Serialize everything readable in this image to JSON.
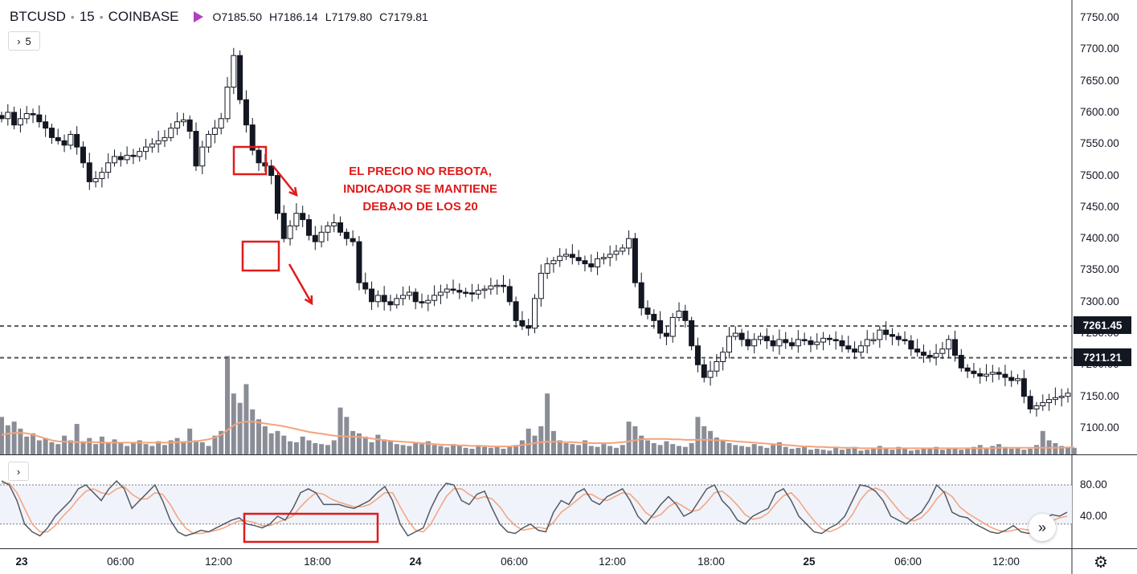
{
  "header": {
    "symbol": "BTCUSD",
    "interval": "15",
    "exchange": "COINBASE",
    "open": "O7185.50",
    "high": "H7186.14",
    "low": "L7179.80",
    "close": "C7179.81",
    "flag_color": "#b040c0"
  },
  "indicators_toggle": {
    "icon": "chevron-right-icon",
    "count": "5"
  },
  "pane_toggle": {
    "icon": "chevron-right-icon"
  },
  "annotation": {
    "line1": "EL PRECIO NO REBOTA,",
    "line2": "INDICADOR SE MANTIENE",
    "line3": "DEBAJO DE LOS 20",
    "color": "#e01b1b"
  },
  "price_tags": {
    "upper": "7261.45",
    "lower": "7211.21"
  },
  "chart_data": {
    "type": "candlestick",
    "symbol": "BTCUSD",
    "timeframe": "15",
    "y_ticks": [
      "7750.00",
      "7700.00",
      "7650.00",
      "7600.00",
      "7550.00",
      "7500.00",
      "7450.00",
      "7400.00",
      "7350.00",
      "7300.00",
      "7250.00",
      "7200.00",
      "7150.00",
      "7100.00"
    ],
    "ylim": [
      7060,
      7778
    ],
    "x_ticks": [
      "23",
      "06:00",
      "12:00",
      "18:00",
      "24",
      "06:00",
      "12:00",
      "18:00",
      "25",
      "06:00",
      "12:00"
    ],
    "horizontal_levels": [
      7261.45,
      7211.21
    ],
    "close_series": [
      7590,
      7600,
      7580,
      7590,
      7598,
      7596,
      7585,
      7575,
      7560,
      7555,
      7548,
      7565,
      7545,
      7520,
      7490,
      7495,
      7505,
      7520,
      7530,
      7525,
      7532,
      7530,
      7538,
      7545,
      7550,
      7555,
      7560,
      7575,
      7585,
      7588,
      7570,
      7515,
      7545,
      7565,
      7575,
      7590,
      7640,
      7690,
      7620,
      7580,
      7540,
      7520,
      7515,
      7500,
      7440,
      7400,
      7420,
      7440,
      7430,
      7405,
      7395,
      7410,
      7420,
      7425,
      7410,
      7400,
      7395,
      7330,
      7320,
      7300,
      7310,
      7300,
      7295,
      7305,
      7310,
      7315,
      7300,
      7298,
      7302,
      7310,
      7315,
      7320,
      7318,
      7315,
      7314,
      7312,
      7318,
      7320,
      7325,
      7326,
      7324,
      7300,
      7270,
      7262,
      7258,
      7305,
      7345,
      7360,
      7365,
      7372,
      7375,
      7370,
      7365,
      7360,
      7355,
      7368,
      7370,
      7375,
      7380,
      7385,
      7400,
      7330,
      7290,
      7280,
      7270,
      7250,
      7245,
      7275,
      7285,
      7270,
      7230,
      7200,
      7180,
      7190,
      7205,
      7220,
      7245,
      7250,
      7240,
      7230,
      7240,
      7245,
      7238,
      7230,
      7240,
      7235,
      7230,
      7240,
      7238,
      7232,
      7236,
      7242,
      7240,
      7238,
      7230,
      7225,
      7220,
      7230,
      7240,
      7240,
      7255,
      7248,
      7245,
      7240,
      7238,
      7225,
      7220,
      7215,
      7212,
      7218,
      7225,
      7240,
      7215,
      7195,
      7190,
      7186,
      7182,
      7185,
      7188,
      7185,
      7180,
      7175,
      7178,
      7150,
      7130,
      7135,
      7140,
      7145,
      7148,
      7150,
      7155
    ],
    "volume_series": [
      80,
      62,
      70,
      55,
      38,
      45,
      30,
      35,
      26,
      22,
      40,
      30,
      65,
      28,
      35,
      22,
      38,
      24,
      32,
      26,
      18,
      25,
      30,
      22,
      18,
      28,
      20,
      30,
      35,
      28,
      55,
      30,
      26,
      18,
      40,
      50,
      210,
      130,
      110,
      150,
      96,
      75,
      60,
      45,
      50,
      40,
      28,
      26,
      38,
      30,
      24,
      22,
      20,
      30,
      100,
      80,
      50,
      45,
      38,
      26,
      42,
      32,
      28,
      22,
      20,
      18,
      25,
      22,
      28,
      20,
      18,
      15,
      22,
      18,
      14,
      12,
      20,
      16,
      14,
      18,
      12,
      16,
      20,
      30,
      55,
      40,
      60,
      130,
      50,
      30,
      24,
      22,
      20,
      30,
      18,
      16,
      22,
      18,
      14,
      20,
      70,
      60,
      40,
      30,
      24,
      20,
      28,
      22,
      18,
      16,
      24,
      80,
      60,
      50,
      36,
      30,
      24,
      20,
      18,
      16,
      22,
      18,
      14,
      20,
      26,
      16,
      12,
      14,
      18,
      10,
      12,
      10,
      8,
      14,
      10,
      12,
      16,
      8,
      10,
      12,
      18,
      14,
      10,
      16,
      12,
      8,
      10,
      14,
      12,
      16,
      10,
      12,
      14,
      10,
      12,
      16,
      20,
      14,
      18,
      22,
      16,
      12,
      14,
      10,
      12,
      20,
      50,
      30,
      24,
      18,
      16,
      14
    ],
    "volume_ma_series": [
      42,
      44,
      46,
      46,
      45,
      42,
      38,
      34,
      30,
      28,
      27,
      27,
      26,
      26,
      26,
      26,
      25,
      25,
      25,
      25,
      25,
      25,
      25,
      25,
      25,
      25,
      25,
      25,
      26,
      26,
      27,
      28,
      30,
      32,
      36,
      42,
      52,
      62,
      68,
      70,
      70,
      68,
      66,
      64,
      62,
      60,
      57,
      54,
      51,
      48,
      46,
      44,
      42,
      40,
      39,
      38,
      38,
      37,
      36,
      34,
      32,
      30,
      29,
      28,
      27,
      26,
      25,
      24,
      23,
      22,
      21,
      20,
      20,
      19,
      19,
      18,
      18,
      18,
      17,
      17,
      17,
      17,
      18,
      20,
      22,
      24,
      26,
      27,
      27,
      27,
      26,
      26,
      25,
      25,
      24,
      24,
      24,
      24,
      25,
      26,
      28,
      30,
      32,
      33,
      33,
      33,
      33,
      32,
      32,
      31,
      31,
      31,
      31,
      31,
      30,
      30,
      29,
      28,
      27,
      26,
      25,
      24,
      23,
      22,
      21,
      20,
      19,
      18,
      17,
      17,
      16,
      16,
      15,
      15,
      14,
      14,
      14,
      13,
      13,
      13,
      13,
      13,
      13,
      13,
      13,
      13,
      13,
      13,
      13,
      13,
      13,
      13,
      13,
      13,
      13,
      13,
      13,
      13,
      13,
      14,
      14,
      14,
      14,
      14,
      14,
      14,
      14,
      14,
      14,
      14,
      15,
      15
    ],
    "stochastic": {
      "upper_band": 80,
      "lower_band": 20,
      "y_ticks": [
        "80.00",
        "40.00"
      ],
      "ylim": [
        0,
        100
      ],
      "k_series": [
        85,
        80,
        60,
        30,
        20,
        15,
        25,
        40,
        50,
        60,
        75,
        80,
        70,
        60,
        75,
        85,
        75,
        50,
        60,
        70,
        80,
        60,
        35,
        20,
        15,
        18,
        22,
        20,
        25,
        30,
        35,
        38,
        30,
        28,
        25,
        30,
        40,
        35,
        50,
        70,
        75,
        70,
        55,
        55,
        55,
        52,
        50,
        55,
        60,
        70,
        78,
        60,
        30,
        15,
        20,
        25,
        50,
        70,
        82,
        80,
        60,
        55,
        68,
        72,
        50,
        30,
        20,
        18,
        25,
        30,
        22,
        20,
        45,
        60,
        55,
        70,
        75,
        60,
        55,
        65,
        70,
        75,
        60,
        40,
        30,
        42,
        55,
        65,
        55,
        40,
        45,
        60,
        75,
        80,
        60,
        50,
        35,
        30,
        40,
        45,
        50,
        70,
        75,
        60,
        40,
        30,
        20,
        18,
        25,
        30,
        40,
        60,
        80,
        78,
        72,
        60,
        40,
        35,
        30,
        38,
        45,
        60,
        80,
        70,
        45,
        40,
        38,
        30,
        25,
        20,
        18,
        22,
        28,
        20,
        18,
        25,
        35,
        42,
        40,
        45
      ],
      "d_series": [
        82,
        82,
        70,
        50,
        30,
        20,
        20,
        28,
        40,
        50,
        62,
        72,
        75,
        70,
        68,
        75,
        78,
        68,
        62,
        62,
        70,
        68,
        55,
        38,
        25,
        18,
        18,
        20,
        22,
        25,
        30,
        34,
        34,
        32,
        28,
        28,
        32,
        36,
        40,
        52,
        62,
        70,
        68,
        62,
        58,
        55,
        52,
        52,
        55,
        62,
        70,
        70,
        52,
        35,
        22,
        20,
        30,
        48,
        65,
        75,
        75,
        68,
        62,
        65,
        62,
        52,
        38,
        28,
        22,
        24,
        26,
        24,
        32,
        45,
        52,
        60,
        68,
        68,
        62,
        60,
        65,
        70,
        68,
        58,
        45,
        38,
        42,
        52,
        58,
        52,
        46,
        48,
        58,
        70,
        72,
        64,
        54,
        42,
        36,
        38,
        44,
        56,
        66,
        70,
        60,
        46,
        34,
        24,
        20,
        24,
        30,
        42,
        60,
        72,
        76,
        72,
        60,
        48,
        38,
        34,
        38,
        48,
        62,
        72,
        65,
        52,
        44,
        38,
        32,
        26,
        22,
        20,
        22,
        24,
        22,
        22,
        28,
        34,
        38,
        40
      ]
    }
  }
}
